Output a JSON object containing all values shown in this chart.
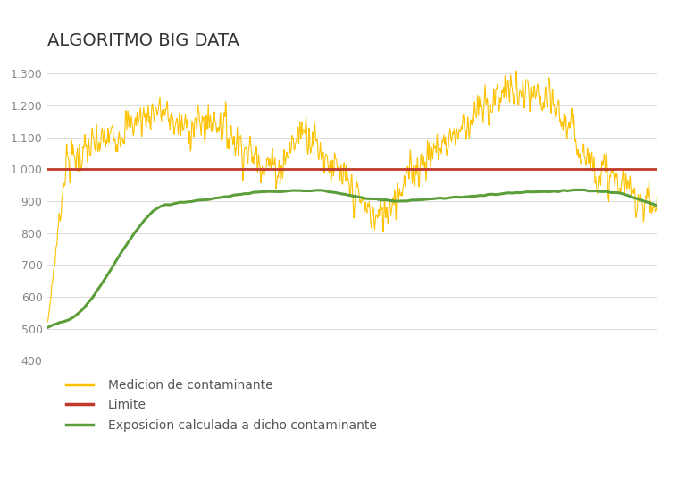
{
  "title": "ALGORITMO BIG DATA",
  "title_fontsize": 14,
  "title_color": "#333333",
  "title_fontweight": "normal",
  "ylim": [
    400,
    1350
  ],
  "yticks": [
    400,
    500,
    600,
    700,
    800,
    900,
    1000,
    1100,
    1200,
    1300
  ],
  "ytick_labels": [
    "400",
    "500",
    "600",
    "700",
    "800",
    "900",
    "1.000",
    "1.100",
    "1.200",
    "1.300"
  ],
  "limit_value": 1000,
  "line_yellow": "#FFC200",
  "line_red": "#C0392B",
  "line_green": "#5B9E3A",
  "background_color": "#FFFFFF",
  "grid_color": "#DDDDDD",
  "legend_labels": [
    "Medicion de contaminante",
    "Limite",
    "Exposicion calculada a dicho contaminante"
  ],
  "legend_fontsize": 10,
  "n_points": 1200,
  "tick_color": "#888888",
  "tick_fontsize": 9
}
